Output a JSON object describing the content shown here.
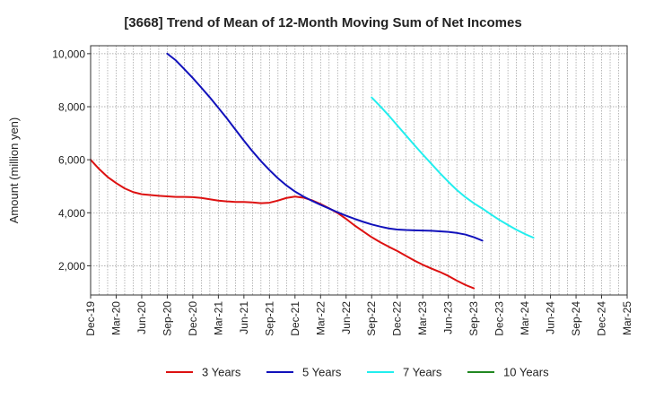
{
  "chart_data": {
    "type": "line",
    "title": "[3668]  Trend of Mean of 12-Month Moving Sum of Net Incomes",
    "xlabel": "",
    "ylabel": "Amount (million yen)",
    "ylim": [
      900,
      10300
    ],
    "y_ticks": [
      2000,
      4000,
      6000,
      8000,
      10000
    ],
    "y_tick_labels": [
      "2,000",
      "4,000",
      "6,000",
      "8,000",
      "10,000"
    ],
    "x_tick_labels": [
      "Dec-19",
      "Mar-20",
      "Jun-20",
      "Sep-20",
      "Dec-20",
      "Mar-21",
      "Jun-21",
      "Sep-21",
      "Dec-21",
      "Mar-22",
      "Jun-22",
      "Sep-22",
      "Dec-22",
      "Mar-23",
      "Jun-23",
      "Sep-23",
      "Dec-23",
      "Mar-24",
      "Jun-24",
      "Sep-24",
      "Dec-24",
      "Mar-25"
    ],
    "grid": true,
    "legend_position": "bottom",
    "series": [
      {
        "name": "3 Years",
        "color": "#dd1111",
        "start": "Dec-19",
        "values": [
          6000,
          5650,
          5350,
          5120,
          4920,
          4780,
          4700,
          4670,
          4640,
          4620,
          4600,
          4600,
          4590,
          4560,
          4510,
          4460,
          4430,
          4410,
          4410,
          4390,
          4360,
          4380,
          4460,
          4560,
          4610,
          4570,
          4470,
          4330,
          4170,
          3990,
          3770,
          3520,
          3300,
          3080,
          2890,
          2720,
          2560,
          2380,
          2200,
          2040,
          1900,
          1770,
          1620,
          1440,
          1280,
          1150
        ]
      },
      {
        "name": "5 Years",
        "color": "#1111bb",
        "start": "Sep-20",
        "values": [
          10000,
          9750,
          9420,
          9080,
          8720,
          8350,
          7960,
          7560,
          7140,
          6720,
          6320,
          5950,
          5610,
          5300,
          5030,
          4800,
          4610,
          4450,
          4300,
          4160,
          4020,
          3890,
          3770,
          3660,
          3560,
          3480,
          3410,
          3370,
          3350,
          3340,
          3330,
          3320,
          3300,
          3280,
          3240,
          3180,
          3080,
          2950
        ]
      },
      {
        "name": "7 Years",
        "color": "#22eeee",
        "start": "Sep-22",
        "values": [
          8350,
          8020,
          7670,
          7300,
          6930,
          6560,
          6200,
          5850,
          5500,
          5170,
          4860,
          4590,
          4360,
          4160,
          3940,
          3730,
          3540,
          3360,
          3200,
          3060
        ]
      },
      {
        "name": "10 Years",
        "color": "#228822",
        "start": "",
        "values": []
      }
    ]
  }
}
